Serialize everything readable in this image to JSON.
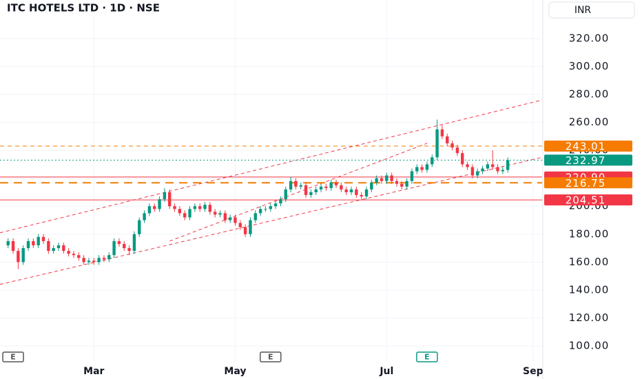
{
  "chart_data": {
    "type": "candlestick",
    "title": "ITC HOTELS LTD · 1D · NSE",
    "currency": "INR",
    "up_color": "#089981",
    "down_color": "#f23645",
    "xlim": [
      -1.6,
      105.8
    ],
    "ylim": [
      88.65,
      347.6
    ],
    "xticks": [
      {
        "value": 17,
        "label": "Mar"
      },
      {
        "value": 45,
        "label": "May"
      },
      {
        "value": 75,
        "label": "Jul"
      },
      {
        "value": 104,
        "label": "Sep"
      }
    ],
    "yticks": [
      {
        "value": 100,
        "label": "100.00"
      },
      {
        "value": 120,
        "label": "120.00"
      },
      {
        "value": 140,
        "label": "140.00"
      },
      {
        "value": 160,
        "label": "160.00"
      },
      {
        "value": 180,
        "label": "180.00"
      },
      {
        "value": 200,
        "label": "200.00"
      },
      {
        "value": 220,
        "label": "220.00"
      },
      {
        "value": 240,
        "label": "240.00"
      },
      {
        "value": 260,
        "label": "260.00"
      },
      {
        "value": 280,
        "label": "280.00"
      },
      {
        "value": 300,
        "label": "300.00"
      },
      {
        "value": 320,
        "label": "320.00"
      }
    ],
    "grid": true,
    "open": [
      172,
      175,
      168,
      160,
      170,
      175,
      172,
      178,
      175,
      168,
      170,
      172,
      168,
      166,
      165,
      163,
      160,
      161,
      160,
      163,
      162,
      165,
      175,
      173,
      170,
      168,
      180,
      190,
      195,
      200,
      198,
      205,
      210,
      200,
      198,
      195,
      192,
      198,
      200,
      198,
      201,
      196,
      194,
      195,
      190,
      192,
      188,
      185,
      180,
      190,
      195,
      198,
      198,
      200,
      202,
      205,
      212,
      218,
      214,
      215,
      208,
      210,
      212,
      214,
      213,
      217,
      215,
      212,
      210,
      212,
      208,
      207,
      212,
      217,
      220,
      218,
      222,
      218,
      216,
      214,
      218,
      225,
      228,
      226,
      230,
      235,
      255,
      250,
      245,
      242,
      238,
      230,
      228,
      222,
      225,
      227,
      230,
      228,
      225,
      226
    ],
    "high": [
      177,
      177,
      170,
      172,
      177,
      177,
      180,
      180,
      177,
      172,
      174,
      174,
      170,
      168,
      167,
      165,
      163,
      163,
      165,
      165,
      167,
      177,
      177,
      175,
      172,
      182,
      192,
      197,
      202,
      202,
      207,
      213,
      212,
      202,
      200,
      197,
      200,
      202,
      202,
      203,
      203,
      198,
      197,
      197,
      194,
      194,
      190,
      187,
      192,
      197,
      200,
      200,
      202,
      204,
      207,
      214,
      221,
      220,
      217,
      217,
      212,
      214,
      216,
      216,
      219,
      219,
      217,
      214,
      214,
      214,
      210,
      214,
      219,
      222,
      222,
      224,
      224,
      220,
      218,
      220,
      227,
      230,
      230,
      232,
      237,
      262,
      258,
      252,
      247,
      244,
      240,
      232,
      230,
      227,
      229,
      232,
      240,
      230,
      228,
      235
    ],
    "low": [
      170,
      166,
      155,
      158,
      168,
      170,
      170,
      173,
      166,
      166,
      168,
      166,
      164,
      163,
      161,
      158,
      158,
      158,
      158,
      160,
      160,
      163,
      171,
      168,
      165,
      166,
      178,
      188,
      193,
      196,
      196,
      203,
      198,
      196,
      193,
      190,
      190,
      196,
      196,
      196,
      194,
      192,
      192,
      188,
      188,
      186,
      183,
      178,
      178,
      188,
      193,
      196,
      196,
      198,
      200,
      203,
      210,
      212,
      212,
      206,
      206,
      208,
      210,
      211,
      211,
      213,
      210,
      208,
      208,
      206,
      205,
      205,
      210,
      215,
      216,
      216,
      216,
      214,
      212,
      212,
      216,
      223,
      224,
      224,
      228,
      233,
      248,
      243,
      240,
      236,
      228,
      226,
      220,
      220,
      223,
      225,
      226,
      223,
      223,
      224
    ],
    "close": [
      175,
      168,
      160,
      170,
      175,
      172,
      178,
      175,
      168,
      170,
      172,
      168,
      166,
      165,
      163,
      160,
      161,
      160,
      163,
      162,
      165,
      175,
      173,
      170,
      168,
      180,
      190,
      195,
      200,
      198,
      205,
      210,
      200,
      198,
      195,
      192,
      198,
      200,
      198,
      201,
      196,
      194,
      195,
      190,
      192,
      188,
      185,
      180,
      190,
      195,
      198,
      198,
      200,
      202,
      205,
      212,
      218,
      214,
      215,
      208,
      210,
      212,
      214,
      213,
      217,
      215,
      212,
      210,
      212,
      208,
      207,
      212,
      217,
      220,
      218,
      222,
      218,
      216,
      214,
      218,
      225,
      228,
      226,
      230,
      235,
      255,
      250,
      245,
      242,
      238,
      230,
      228,
      222,
      225,
      227,
      230,
      228,
      225,
      226,
      232.97
    ],
    "levels": [
      {
        "value": 243.01,
        "color": "#f57c00",
        "style": "dashed"
      },
      {
        "value": 232.97,
        "color": "#089981",
        "style": "dotted"
      },
      {
        "value": 220.9,
        "label": "220.90",
        "color": "#f23645",
        "style": "solid"
      },
      {
        "value": 216.75,
        "color": "#f57c00",
        "style": "thick-dashed"
      },
      {
        "value": 204.51,
        "color": "#f23645",
        "style": "solid"
      }
    ],
    "trendlines": [
      {
        "x": [
          -1.6,
          105.8
        ],
        "y": [
          181,
          276
        ],
        "color": "#f23645"
      },
      {
        "x": [
          -1.6,
          105.8
        ],
        "y": [
          144,
          235
        ],
        "color": "#f23645"
      },
      {
        "x": [
          32,
          83
        ],
        "y": [
          175,
          245
        ],
        "color": "#f23645"
      }
    ],
    "events": [
      {
        "x": 1,
        "label": "E",
        "color": "#555555"
      },
      {
        "x": 52,
        "label": "E",
        "color": "#555555"
      },
      {
        "x": 83,
        "label": "E",
        "color": "#089981"
      }
    ]
  }
}
